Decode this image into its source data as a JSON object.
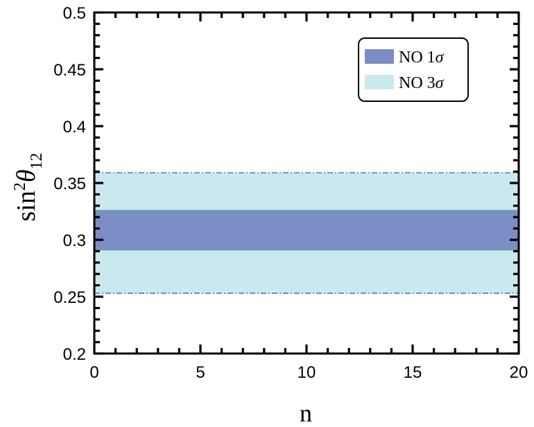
{
  "chart_data": {
    "type": "area",
    "x_range": [
      0,
      20
    ],
    "y_range": [
      0.2,
      0.5
    ],
    "x_ticks": [
      "0",
      "5",
      "10",
      "15",
      "20"
    ],
    "y_ticks": [
      "0.2",
      "0.25",
      "0.3",
      "0.35",
      "0.4",
      "0.45",
      "0.5"
    ],
    "xlabel": "n",
    "ylabel": {
      "base": "sin",
      "sup": "2",
      "symbol": "θ",
      "sub": "12"
    },
    "bands": [
      {
        "name": "NO 3σ",
        "name_main": "NO 3",
        "name_sym": "σ",
        "y_low": 0.253,
        "y_high": 0.359,
        "color": "#c9e9ef",
        "edge_color": "#3a5fa8",
        "edge_style": "dash-dot"
      },
      {
        "name": "NO 1σ",
        "name_main": "NO 1",
        "name_sym": "σ",
        "y_low": 0.291,
        "y_high": 0.326,
        "color": "#7b8dc4",
        "edge_color": "#6aaa9a",
        "edge_style": "solid"
      }
    ],
    "legend_position": "top-right",
    "legend_order": [
      1,
      0
    ],
    "grid": false
  }
}
